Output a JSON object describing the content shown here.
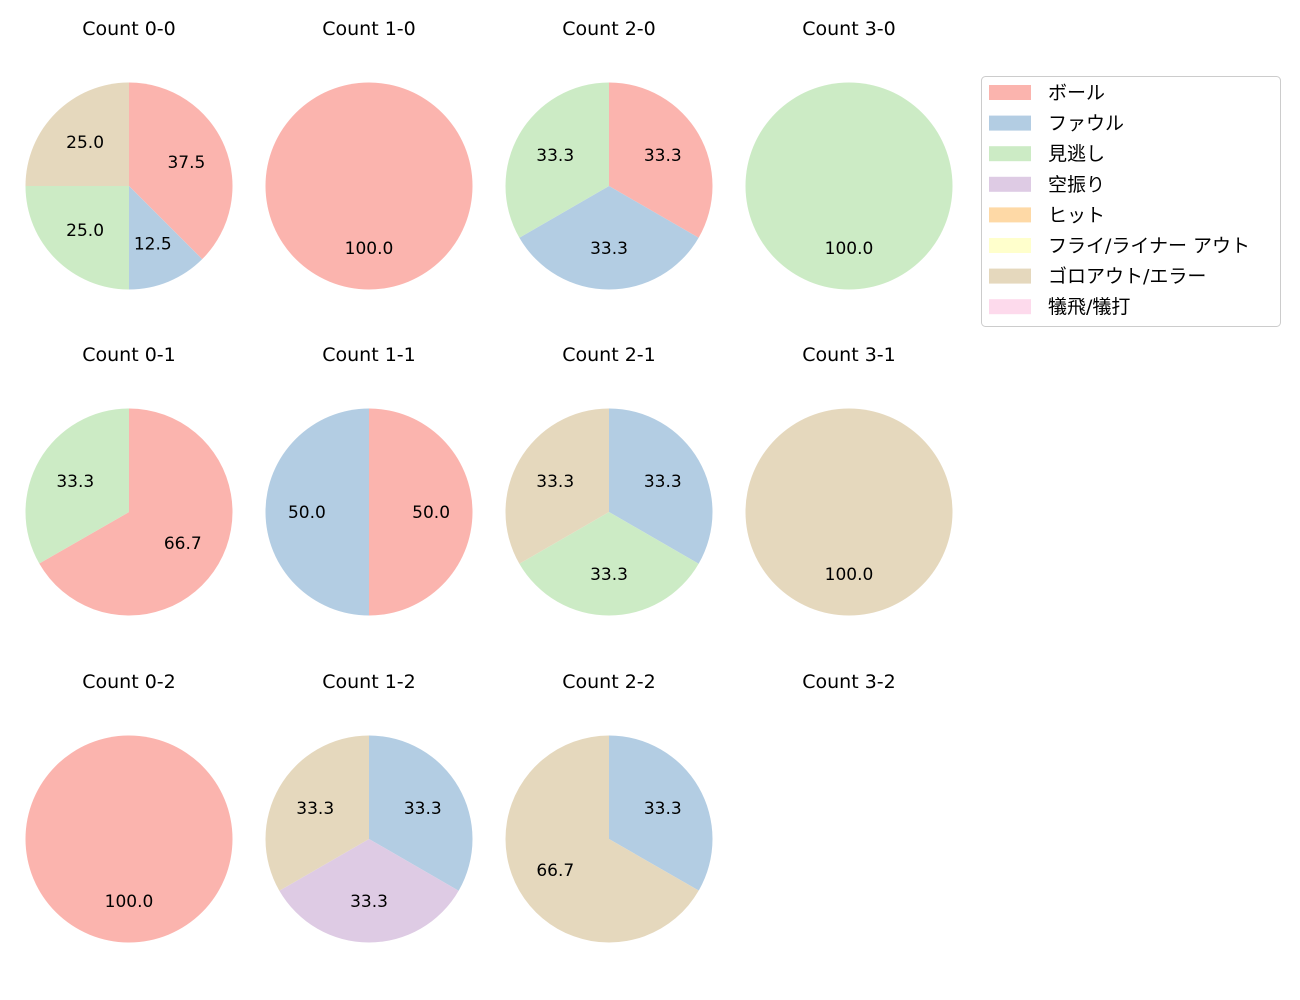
{
  "chart_data": {
    "type": "pie",
    "categories": [
      "ボール",
      "ファウル",
      "見逃し",
      "空振り",
      "ヒット",
      "フライ/ライナー アウト",
      "ゴロアウト/エラー",
      "犠飛/犠打"
    ],
    "colors": [
      "#fbb4ae",
      "#b3cde3",
      "#ccebc5",
      "#decbe4",
      "#fed9a6",
      "#ffffcc",
      "#e5d8bd",
      "#fddaec"
    ],
    "legend_position": "top-right",
    "start_angle_deg": 90,
    "direction": "clockwise",
    "charts": [
      {
        "title": "Count 0-0",
        "values": [
          37.5,
          12.5,
          25.0,
          0,
          0,
          0,
          25.0,
          0
        ]
      },
      {
        "title": "Count 1-0",
        "values": [
          100.0,
          0,
          0,
          0,
          0,
          0,
          0,
          0
        ]
      },
      {
        "title": "Count 2-0",
        "values": [
          33.3,
          33.3,
          33.3,
          0,
          0,
          0,
          0,
          0
        ]
      },
      {
        "title": "Count 3-0",
        "values": [
          0,
          0,
          100.0,
          0,
          0,
          0,
          0,
          0
        ]
      },
      {
        "title": "Count 0-1",
        "values": [
          66.7,
          0,
          33.3,
          0,
          0,
          0,
          0,
          0
        ]
      },
      {
        "title": "Count 1-1",
        "values": [
          50.0,
          50.0,
          0,
          0,
          0,
          0,
          0,
          0
        ]
      },
      {
        "title": "Count 2-1",
        "values": [
          0,
          33.3,
          33.3,
          0,
          0,
          0,
          33.3,
          0
        ]
      },
      {
        "title": "Count 3-1",
        "values": [
          0,
          0,
          0,
          0,
          0,
          0,
          100.0,
          0
        ]
      },
      {
        "title": "Count 0-2",
        "values": [
          100.0,
          0,
          0,
          0,
          0,
          0,
          0,
          0
        ]
      },
      {
        "title": "Count 1-2",
        "values": [
          0,
          33.3,
          0,
          33.3,
          0,
          0,
          33.3,
          0
        ]
      },
      {
        "title": "Count 2-2",
        "values": [
          0,
          33.3,
          0,
          0,
          0,
          0,
          66.7,
          0
        ]
      },
      {
        "title": "Count 3-2",
        "values": [
          0,
          0,
          0,
          0,
          0,
          0,
          0,
          0
        ]
      }
    ]
  }
}
